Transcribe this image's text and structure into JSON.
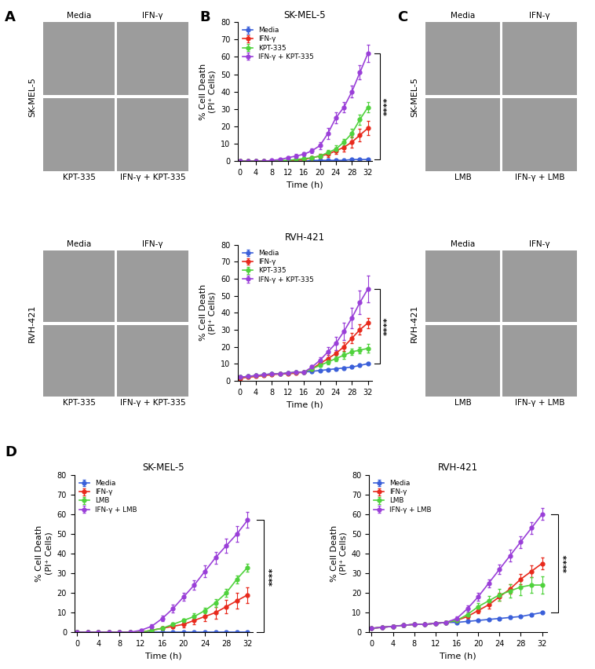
{
  "image_panels": [
    {
      "panel": "A",
      "cell_line": "SK-MEL-5",
      "cells": [
        "Media",
        "IFN-γ",
        "KPT-335",
        "IFN-γ + KPT-335"
      ]
    },
    {
      "panel": "A",
      "cell_line": "RVH-421",
      "cells": [
        "Media",
        "IFN-γ",
        "KPT-335",
        "IFN-γ + KPT-335"
      ]
    },
    {
      "panel": "C",
      "cell_line": "SK-MEL-5",
      "cells": [
        "Media",
        "IFN-γ",
        "LMB",
        "IFN-γ + LMB"
      ]
    },
    {
      "panel": "C",
      "cell_line": "RVH-421",
      "cells": [
        "Media",
        "IFN-γ",
        "LMB",
        "IFN-γ + LMB"
      ]
    }
  ],
  "chart_data": [
    {
      "panel": "B",
      "type": "line",
      "title": "SK-MEL-5",
      "xlabel": "Time (h)",
      "ylabel": "% Cell Death\n(PI⁺ Cells)",
      "xlim": [
        -0.5,
        33
      ],
      "xticks": [
        0,
        4,
        8,
        12,
        16,
        20,
        24,
        28,
        32
      ],
      "ylim": [
        0,
        80
      ],
      "yticks": [
        0,
        10,
        20,
        30,
        40,
        50,
        60,
        70,
        80
      ],
      "legend": "upper left",
      "marker": "o",
      "annotation": "****",
      "x": [
        0,
        2,
        4,
        6,
        8,
        10,
        12,
        14,
        16,
        18,
        20,
        22,
        24,
        26,
        28,
        30,
        32
      ],
      "series": [
        {
          "name": "Media",
          "color": "#3a5fd9",
          "values": [
            0,
            0,
            0,
            0,
            0,
            0,
            0,
            0,
            0,
            0.5,
            0.5,
            0.5,
            0.5,
            0.5,
            1,
            1,
            1
          ],
          "errors": [
            0.2,
            0.2,
            0.2,
            0.2,
            0.2,
            0.2,
            0.2,
            0.2,
            0.2,
            0.2,
            0.2,
            0.2,
            0.2,
            0.2,
            0.2,
            0.2,
            0.2
          ]
        },
        {
          "name": "IFN-γ",
          "color": "#e8291c",
          "values": [
            0,
            0,
            0,
            0,
            0,
            0,
            0,
            0.5,
            1,
            2,
            3,
            4,
            6,
            8,
            11,
            15,
            19
          ],
          "errors": [
            0,
            0,
            0,
            0,
            0,
            0,
            0,
            0.3,
            0.5,
            0.8,
            1,
            1.5,
            2,
            2.5,
            3,
            3.5,
            4
          ]
        },
        {
          "name": "KPT-335",
          "color": "#4fd23c",
          "values": [
            0,
            0,
            0,
            0,
            0,
            0.5,
            0.5,
            1,
            1.5,
            2,
            3,
            5,
            7,
            11,
            16,
            24,
            31
          ],
          "errors": [
            0,
            0,
            0,
            0,
            0,
            0.3,
            0.3,
            0.5,
            0.5,
            0.8,
            1,
            1.5,
            2,
            2,
            2.5,
            3,
            3
          ]
        },
        {
          "name": "IFN-γ + KPT-335",
          "color": "#9a3fd8",
          "values": [
            0,
            0,
            0,
            0,
            0.5,
            1,
            2,
            3,
            4,
            6,
            9,
            16,
            25,
            31,
            40,
            51,
            62
          ],
          "errors": [
            0,
            0,
            0,
            0,
            0.3,
            0.5,
            0.8,
            1,
            1,
            1.5,
            2,
            3,
            3,
            3,
            3.5,
            4,
            5
          ]
        }
      ]
    },
    {
      "panel": "B",
      "type": "line",
      "title": "RVH-421",
      "xlabel": "Time (h)",
      "ylabel": "% Cell Death\n(PI⁺ Cells)",
      "xlim": [
        -0.5,
        33
      ],
      "xticks": [
        0,
        4,
        8,
        12,
        16,
        20,
        24,
        28,
        32
      ],
      "ylim": [
        0,
        80
      ],
      "yticks": [
        0,
        10,
        20,
        30,
        40,
        50,
        60,
        70,
        80
      ],
      "legend": "upper left",
      "marker": "o",
      "annotation": "****",
      "x": [
        0,
        2,
        4,
        6,
        8,
        10,
        12,
        14,
        16,
        18,
        20,
        22,
        24,
        26,
        28,
        30,
        32
      ],
      "series": [
        {
          "name": "Media",
          "color": "#3a5fd9",
          "values": [
            2,
            2.5,
            3,
            3.5,
            4,
            4,
            4.5,
            5,
            5,
            5.5,
            6,
            6.5,
            7,
            7.5,
            8,
            9,
            10
          ],
          "errors": [
            0.5,
            0.5,
            0.5,
            0.5,
            0.5,
            0.5,
            0.5,
            0.5,
            0.5,
            0.5,
            0.5,
            0.5,
            0.5,
            0.5,
            0.5,
            0.5,
            0.5
          ]
        },
        {
          "name": "IFN-γ",
          "color": "#e8291c",
          "values": [
            1.5,
            2,
            2.5,
            3,
            3.5,
            4,
            4,
            4.5,
            5,
            7,
            10,
            13,
            16,
            20,
            25,
            30,
            34
          ],
          "errors": [
            0.5,
            0.5,
            0.5,
            0.5,
            0.5,
            0.5,
            0.5,
            0.5,
            0.5,
            1,
            1.5,
            2,
            2,
            2.5,
            3,
            3,
            3
          ]
        },
        {
          "name": "KPT-335",
          "color": "#4fd23c",
          "values": [
            2,
            2.5,
            3,
            3.5,
            4,
            4,
            4.5,
            5,
            5,
            7,
            9,
            11,
            13,
            15,
            17,
            18,
            19
          ],
          "errors": [
            0.5,
            0.5,
            0.5,
            0.5,
            0.5,
            0.5,
            0.5,
            0.5,
            0.5,
            1,
            1,
            1.5,
            1.5,
            2,
            2,
            2,
            2.5
          ]
        },
        {
          "name": "IFN-γ + KPT-335",
          "color": "#9a3fd8",
          "values": [
            2,
            2.5,
            3,
            3.5,
            4,
            4,
            4.5,
            5,
            5,
            8,
            12,
            17,
            22,
            29,
            37,
            46,
            54
          ],
          "errors": [
            0.5,
            0.5,
            0.5,
            0.5,
            0.5,
            0.5,
            0.5,
            0.5,
            0.5,
            1,
            2,
            3,
            4,
            5,
            6,
            7,
            8
          ]
        }
      ]
    },
    {
      "panel": "D",
      "type": "line",
      "title": "SK-MEL-5",
      "xlabel": "Time (h)",
      "ylabel": "% Cell Death\n(PI⁺ Cells)",
      "xlim": [
        -0.5,
        33
      ],
      "xticks": [
        0,
        4,
        8,
        12,
        16,
        20,
        24,
        28,
        32
      ],
      "ylim": [
        0,
        80
      ],
      "yticks": [
        0,
        10,
        20,
        30,
        40,
        50,
        60,
        70,
        80
      ],
      "legend": "upper left",
      "marker": "o",
      "annotation": "****",
      "x": [
        0,
        2,
        4,
        6,
        8,
        10,
        12,
        14,
        16,
        18,
        20,
        22,
        24,
        26,
        28,
        30,
        32
      ],
      "series": [
        {
          "name": "Media",
          "color": "#3a5fd9",
          "values": [
            0,
            0,
            0,
            0,
            0,
            0,
            0,
            0,
            0,
            0,
            0,
            0,
            0,
            0,
            0,
            0,
            0
          ],
          "errors": [
            0.2,
            0.2,
            0.2,
            0.2,
            0.2,
            0.2,
            0.2,
            0.2,
            0.2,
            0.2,
            0.2,
            0.2,
            0.2,
            0.2,
            0.2,
            0.2,
            0.2
          ]
        },
        {
          "name": "IFN-γ",
          "color": "#e8291c",
          "values": [
            0,
            0,
            0,
            0,
            0,
            0,
            0,
            1,
            2,
            3,
            4,
            6,
            8,
            10,
            13,
            16,
            19
          ],
          "errors": [
            0,
            0,
            0,
            0,
            0,
            0,
            0,
            0.5,
            0.8,
            1,
            1.5,
            2,
            2.5,
            3,
            3.5,
            4,
            4
          ]
        },
        {
          "name": "LMB",
          "color": "#4fd23c",
          "values": [
            0,
            0,
            0,
            0,
            0,
            0,
            0,
            1,
            2,
            4,
            6,
            8,
            11,
            15,
            20,
            27,
            33
          ],
          "errors": [
            0,
            0,
            0,
            0,
            0,
            0,
            0,
            0.5,
            0.8,
            1,
            1,
            1.5,
            1.5,
            2,
            2,
            2,
            2
          ]
        },
        {
          "name": "IFN-γ + LMB",
          "color": "#9a3fd8",
          "values": [
            0,
            0,
            0,
            0,
            0,
            0,
            1,
            3,
            7,
            12,
            18,
            24,
            31,
            38,
            44,
            50,
            57
          ],
          "errors": [
            0,
            0,
            0,
            0,
            0,
            0,
            0.5,
            1,
            1.5,
            2,
            2,
            2.5,
            3,
            3,
            3.5,
            4,
            4
          ]
        }
      ]
    },
    {
      "panel": "D",
      "type": "line",
      "title": "RVH-421",
      "xlabel": "Time (h)",
      "ylabel": "% Cell Death\n(PI⁺ Cells)",
      "xlim": [
        -0.5,
        33
      ],
      "xticks": [
        0,
        4,
        8,
        12,
        16,
        20,
        24,
        28,
        32
      ],
      "ylim": [
        0,
        80
      ],
      "yticks": [
        0,
        10,
        20,
        30,
        40,
        50,
        60,
        70,
        80
      ],
      "legend": "upper left",
      "marker": "o",
      "annotation": "****",
      "x": [
        0,
        2,
        4,
        6,
        8,
        10,
        12,
        14,
        16,
        18,
        20,
        22,
        24,
        26,
        28,
        30,
        32
      ],
      "series": [
        {
          "name": "Media",
          "color": "#3a5fd9",
          "values": [
            2,
            2.5,
            3,
            3.5,
            4,
            4,
            4.5,
            5,
            5,
            5.5,
            6,
            6.5,
            7,
            7.5,
            8,
            9,
            10
          ],
          "errors": [
            0.5,
            0.5,
            0.5,
            0.5,
            0.5,
            0.5,
            0.5,
            0.5,
            0.5,
            0.5,
            0.5,
            0.5,
            0.5,
            0.5,
            0.5,
            0.5,
            0.5
          ]
        },
        {
          "name": "IFN-γ",
          "color": "#e8291c",
          "values": [
            2,
            2.5,
            3,
            3.5,
            4,
            4,
            4.5,
            5,
            6,
            8,
            11,
            14,
            18,
            22,
            27,
            31,
            35
          ],
          "errors": [
            0.5,
            0.5,
            0.5,
            0.5,
            0.5,
            0.5,
            0.5,
            0.5,
            1,
            1,
            1.5,
            2,
            2,
            2.5,
            2.5,
            3,
            3
          ]
        },
        {
          "name": "LMB",
          "color": "#4fd23c",
          "values": [
            2,
            2.5,
            3,
            3.5,
            4,
            4,
            4.5,
            5,
            6,
            9,
            13,
            16,
            19,
            21,
            23,
            24,
            24
          ],
          "errors": [
            0.5,
            0.5,
            0.5,
            0.5,
            0.5,
            0.5,
            0.5,
            0.5,
            1,
            1.5,
            2,
            2.5,
            3,
            3.5,
            4,
            4,
            4.5
          ]
        },
        {
          "name": "IFN-γ + LMB",
          "color": "#9a3fd8",
          "values": [
            2,
            2.5,
            3,
            3.5,
            4,
            4,
            4.5,
            5,
            7,
            12,
            18,
            25,
            32,
            39,
            46,
            53,
            60
          ],
          "errors": [
            0.5,
            0.5,
            0.5,
            0.5,
            0.5,
            0.5,
            0.5,
            0.5,
            1,
            1.5,
            2,
            2,
            2.5,
            3,
            3,
            3,
            3
          ]
        }
      ]
    }
  ]
}
